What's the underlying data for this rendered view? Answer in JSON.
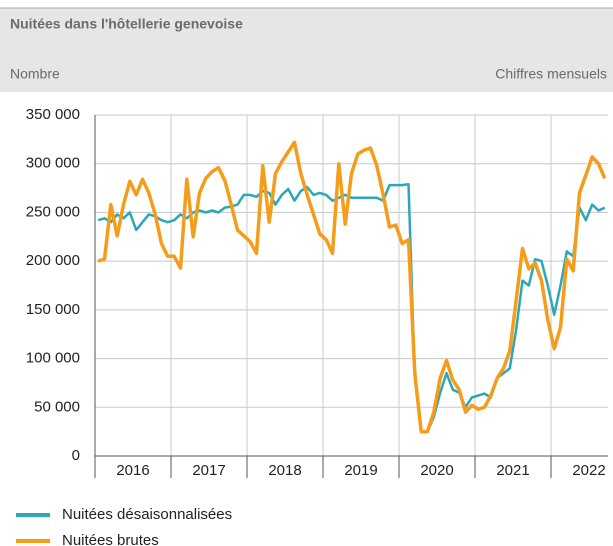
{
  "chart_data": {
    "type": "line",
    "title": "Nuitées dans l'hôtellerie genevoise",
    "subtitle": "Chiffres mensuels",
    "y_label": "Nombre",
    "categories": [
      null,
      null,
      null,
      null,
      null,
      null,
      "2016",
      null,
      null,
      null,
      null,
      null,
      null,
      null,
      null,
      null,
      null,
      null,
      "2017",
      null,
      null,
      null,
      null,
      null,
      null,
      null,
      null,
      null,
      null,
      null,
      "2018",
      null,
      null,
      null,
      null,
      null,
      null,
      null,
      null,
      null,
      null,
      null,
      "2019",
      null,
      null,
      null,
      null,
      null,
      null,
      null,
      null,
      null,
      null,
      null,
      "2020",
      null,
      null,
      null,
      null,
      null,
      null,
      null,
      null,
      null,
      null,
      null,
      "2021",
      null,
      null,
      null,
      null,
      null,
      null,
      null,
      null,
      null,
      null,
      null,
      "2022",
      null,
      null
    ],
    "series": [
      {
        "name": "Nuitées désaisonnalisées",
        "color": "#2aa8b8",
        "values": [
          242000,
          244000,
          240000,
          248000,
          244000,
          250000,
          232000,
          240000,
          248000,
          246000,
          242000,
          240000,
          242000,
          248000,
          244000,
          250000,
          252000,
          250000,
          252000,
          250000,
          255000,
          256000,
          258000,
          268000,
          268000,
          266000,
          272000,
          270000,
          258000,
          268000,
          274000,
          262000,
          272000,
          276000,
          268000,
          270000,
          268000,
          262000,
          265000,
          268000,
          265000,
          265000,
          265000,
          265000,
          265000,
          262000,
          278000,
          278000,
          278000,
          279000,
          80000,
          25000,
          25000,
          40000,
          65000,
          85000,
          68000,
          65000,
          50000,
          60000,
          62000,
          64000,
          60000,
          80000,
          85000,
          90000,
          130000,
          180000,
          175000,
          202000,
          200000,
          175000,
          145000,
          175000,
          210000,
          205000,
          255000,
          242000,
          258000,
          252000,
          255000
        ]
      },
      {
        "name": "Nuitées brutes",
        "color": "#f59d1a",
        "values": [
          200000,
          202000,
          258000,
          226000,
          258000,
          282000,
          268000,
          284000,
          270000,
          248000,
          218000,
          205000,
          205000,
          193000,
          284000,
          225000,
          270000,
          285000,
          292000,
          296000,
          283000,
          258000,
          232000,
          226000,
          220000,
          208000,
          298000,
          240000,
          290000,
          302000,
          312000,
          322000,
          290000,
          268000,
          248000,
          228000,
          222000,
          208000,
          300000,
          238000,
          290000,
          310000,
          314000,
          316000,
          298000,
          268000,
          235000,
          237000,
          218000,
          222000,
          85000,
          25000,
          25000,
          45000,
          80000,
          98000,
          78000,
          68000,
          45000,
          52000,
          48000,
          50000,
          62000,
          80000,
          90000,
          108000,
          160000,
          213000,
          192000,
          198000,
          180000,
          140000,
          110000,
          132000,
          202000,
          190000,
          270000,
          288000,
          307000,
          300000,
          285000
        ]
      }
    ],
    "ylim": [
      0,
      350000
    ],
    "yticks": [
      0,
      {
        "value": 50000,
        "label": "50 000"
      },
      {
        "value": 100000,
        "label": "100 000"
      },
      {
        "value": 150000,
        "label": "150 000"
      },
      {
        "value": 200000,
        "label": "200 000"
      },
      {
        "value": 250000,
        "label": "250 000"
      },
      {
        "value": 300000,
        "label": "300 000"
      },
      {
        "value": 350000,
        "label": "350 000"
      }
    ],
    "grid": true,
    "legend": "bottom"
  }
}
